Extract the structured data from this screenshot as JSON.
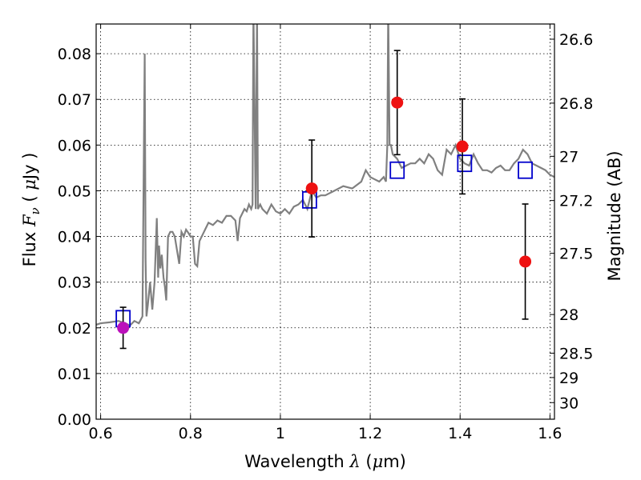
{
  "chart_data": {
    "type": "scatter",
    "xlabel": {
      "prefix": "Wavelength",
      "symbol": "λ",
      "unit_open": " (",
      "unit_mu": "μ",
      "unit_rest": "m)"
    },
    "ylabel": {
      "prefix": "Flux",
      "symbol": "F",
      "subscript": "ν",
      "unit_open": "( ",
      "unit_mu": "μ",
      "unit_rest": "Jy )"
    },
    "y2label": "Magnitude (AB)",
    "xlim": [
      0.59,
      1.61
    ],
    "ylim": [
      0.0,
      0.0865
    ],
    "grid": true,
    "xticks": [
      0.6,
      0.8,
      1.0,
      1.2,
      1.4,
      1.6
    ],
    "xtick_labels": [
      "0.6",
      "0.8",
      "1",
      "1.2",
      "1.4",
      "1.6"
    ],
    "yticks": [
      0.0,
      0.01,
      0.02,
      0.03,
      0.04,
      0.05,
      0.06,
      0.07,
      0.08
    ],
    "ytick_labels": [
      "0.00",
      "0.01",
      "0.02",
      "0.03",
      "0.04",
      "0.05",
      "0.06",
      "0.07",
      "0.08"
    ],
    "y2ticks": [
      {
        "label": "26.6",
        "mag": 26.6
      },
      {
        "label": "26.8",
        "mag": 26.8
      },
      {
        "label": "27",
        "mag": 27.0
      },
      {
        "label": "27.2",
        "mag": 27.2
      },
      {
        "label": "27.5",
        "mag": 27.5
      },
      {
        "label": "28",
        "mag": 28.0
      },
      {
        "label": "28.5",
        "mag": 28.5
      },
      {
        "label": "29",
        "mag": 29.0
      },
      {
        "label": "30",
        "mag": 30.0
      }
    ],
    "model_spectrum": {
      "color": "#808080",
      "x": [
        0.585,
        0.6,
        0.62,
        0.64,
        0.655,
        0.665,
        0.675,
        0.685,
        0.693,
        0.698,
        0.7,
        0.702,
        0.705,
        0.71,
        0.715,
        0.72,
        0.725,
        0.728,
        0.73,
        0.733,
        0.736,
        0.74,
        0.743,
        0.746,
        0.75,
        0.755,
        0.76,
        0.765,
        0.77,
        0.775,
        0.78,
        0.785,
        0.79,
        0.795,
        0.8,
        0.805,
        0.81,
        0.815,
        0.82,
        0.83,
        0.84,
        0.85,
        0.86,
        0.87,
        0.88,
        0.89,
        0.9,
        0.905,
        0.91,
        0.915,
        0.92,
        0.925,
        0.93,
        0.935,
        0.938,
        0.94,
        0.945,
        0.948,
        0.95,
        0.955,
        0.96,
        0.97,
        0.98,
        0.99,
        1.0,
        1.01,
        1.02,
        1.03,
        1.04,
        1.05,
        1.06,
        1.07,
        1.08,
        1.09,
        1.1,
        1.12,
        1.14,
        1.16,
        1.18,
        1.19,
        1.2,
        1.21,
        1.22,
        1.23,
        1.235,
        1.238,
        1.24,
        1.243,
        1.246,
        1.25,
        1.26,
        1.27,
        1.28,
        1.29,
        1.3,
        1.31,
        1.32,
        1.33,
        1.34,
        1.35,
        1.36,
        1.37,
        1.38,
        1.39,
        1.4,
        1.41,
        1.42,
        1.43,
        1.44,
        1.45,
        1.46,
        1.47,
        1.48,
        1.49,
        1.5,
        1.51,
        1.52,
        1.53,
        1.54,
        1.55,
        1.56,
        1.57,
        1.58,
        1.59,
        1.6,
        1.61
      ],
      "y": [
        0.0205,
        0.021,
        0.0212,
        0.0215,
        0.021,
        0.0205,
        0.0215,
        0.021,
        0.0225,
        0.08,
        0.035,
        0.0225,
        0.025,
        0.03,
        0.024,
        0.03,
        0.044,
        0.031,
        0.038,
        0.033,
        0.036,
        0.031,
        0.029,
        0.026,
        0.04,
        0.041,
        0.041,
        0.04,
        0.037,
        0.034,
        0.041,
        0.04,
        0.0415,
        0.0408,
        0.04,
        0.04,
        0.034,
        0.0335,
        0.039,
        0.041,
        0.043,
        0.0425,
        0.0435,
        0.043,
        0.0445,
        0.0445,
        0.0435,
        0.039,
        0.044,
        0.045,
        0.046,
        0.0455,
        0.047,
        0.046,
        0.047,
        0.09,
        0.046,
        0.09,
        0.046,
        0.047,
        0.046,
        0.045,
        0.047,
        0.0455,
        0.045,
        0.046,
        0.045,
        0.0465,
        0.047,
        0.048,
        0.046,
        0.05,
        0.0485,
        0.049,
        0.049,
        0.05,
        0.051,
        0.0505,
        0.052,
        0.0545,
        0.053,
        0.0525,
        0.052,
        0.053,
        0.052,
        0.06,
        0.09,
        0.06,
        0.06,
        0.058,
        0.057,
        0.055,
        0.0555,
        0.056,
        0.056,
        0.057,
        0.056,
        0.058,
        0.057,
        0.0545,
        0.0535,
        0.059,
        0.058,
        0.06,
        0.057,
        0.056,
        0.0555,
        0.058,
        0.056,
        0.0545,
        0.0545,
        0.054,
        0.055,
        0.0555,
        0.0545,
        0.0545,
        0.056,
        0.057,
        0.059,
        0.058,
        0.056,
        0.0555,
        0.055,
        0.0545,
        0.0535,
        0.053
      ]
    },
    "model_photometry": {
      "color": "#0000cc",
      "x": [
        0.65,
        1.065,
        1.26,
        1.41,
        1.545
      ],
      "y": [
        0.022,
        0.048,
        0.0545,
        0.056,
        0.0545
      ]
    },
    "observed_photometry": {
      "x": [
        0.65,
        1.07,
        1.26,
        1.405,
        1.545
      ],
      "y": [
        0.02,
        0.0505,
        0.0693,
        0.0597,
        0.0345
      ],
      "yerr": [
        0.0045,
        0.0106,
        0.0114,
        0.0104,
        0.0126
      ],
      "colors": [
        "#bb11bb",
        "#ee1111",
        "#ee1111",
        "#ee1111",
        "#ee1111"
      ]
    }
  }
}
